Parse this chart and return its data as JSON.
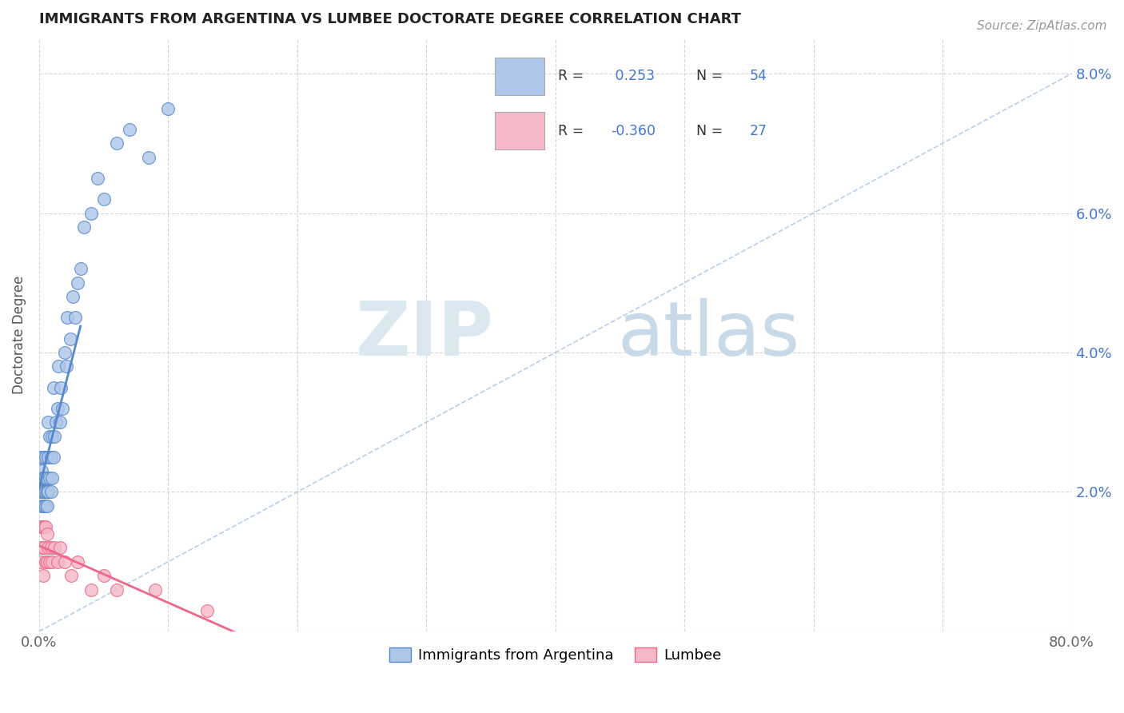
{
  "title": "IMMIGRANTS FROM ARGENTINA VS LUMBEE DOCTORATE DEGREE CORRELATION CHART",
  "source": "Source: ZipAtlas.com",
  "ylabel": "Doctorate Degree",
  "xlim": [
    0.0,
    0.8
  ],
  "ylim": [
    0.0,
    0.085
  ],
  "xtick_positions": [
    0.0,
    0.1,
    0.2,
    0.3,
    0.4,
    0.5,
    0.6,
    0.7,
    0.8
  ],
  "xticklabels": [
    "0.0%",
    "",
    "",
    "",
    "",
    "",
    "",
    "",
    "80.0%"
  ],
  "ytick_positions": [
    0.0,
    0.02,
    0.04,
    0.06,
    0.08
  ],
  "yticklabels_right": [
    "",
    "2.0%",
    "4.0%",
    "6.0%",
    "8.0%"
  ],
  "r1": 0.253,
  "n1": 54,
  "r2": -0.36,
  "n2": 27,
  "blue_fill": "#aec6e8",
  "pink_fill": "#f5b8c8",
  "blue_edge": "#5588cc",
  "pink_edge": "#ee6688",
  "text_blue": "#4477cc",
  "text_dark": "#333333",
  "grid_color": "#cccccc",
  "watermark_zip_color": "#dce8f0",
  "watermark_atlas_color": "#c8dae8",
  "blue_x": [
    0.001,
    0.001,
    0.001,
    0.002,
    0.002,
    0.002,
    0.003,
    0.003,
    0.003,
    0.003,
    0.004,
    0.004,
    0.004,
    0.005,
    0.005,
    0.005,
    0.005,
    0.006,
    0.006,
    0.006,
    0.007,
    0.007,
    0.007,
    0.008,
    0.008,
    0.009,
    0.009,
    0.01,
    0.01,
    0.011,
    0.011,
    0.012,
    0.013,
    0.014,
    0.015,
    0.016,
    0.017,
    0.018,
    0.02,
    0.021,
    0.022,
    0.024,
    0.026,
    0.028,
    0.03,
    0.032,
    0.035,
    0.04,
    0.045,
    0.05,
    0.06,
    0.07,
    0.085,
    0.1
  ],
  "blue_y": [
    0.02,
    0.025,
    0.022,
    0.018,
    0.023,
    0.015,
    0.02,
    0.025,
    0.018,
    0.022,
    0.02,
    0.022,
    0.018,
    0.02,
    0.022,
    0.025,
    0.018,
    0.02,
    0.022,
    0.018,
    0.025,
    0.02,
    0.03,
    0.022,
    0.028,
    0.02,
    0.025,
    0.022,
    0.028,
    0.025,
    0.035,
    0.028,
    0.03,
    0.032,
    0.038,
    0.03,
    0.035,
    0.032,
    0.04,
    0.038,
    0.045,
    0.042,
    0.048,
    0.045,
    0.05,
    0.052,
    0.058,
    0.06,
    0.065,
    0.062,
    0.07,
    0.072,
    0.068,
    0.075
  ],
  "pink_x": [
    0.001,
    0.001,
    0.002,
    0.002,
    0.003,
    0.003,
    0.004,
    0.004,
    0.005,
    0.005,
    0.006,
    0.006,
    0.007,
    0.008,
    0.009,
    0.01,
    0.012,
    0.014,
    0.016,
    0.02,
    0.025,
    0.03,
    0.04,
    0.05,
    0.06,
    0.09,
    0.13
  ],
  "pink_y": [
    0.015,
    0.01,
    0.015,
    0.012,
    0.015,
    0.008,
    0.012,
    0.015,
    0.01,
    0.015,
    0.01,
    0.014,
    0.012,
    0.01,
    0.012,
    0.01,
    0.012,
    0.01,
    0.012,
    0.01,
    0.008,
    0.01,
    0.006,
    0.008,
    0.006,
    0.006,
    0.003
  ],
  "blue_line_x0": 0.0,
  "blue_line_y0": 0.018,
  "blue_line_x1": 0.03,
  "blue_line_y1": 0.04,
  "pink_line_x0": 0.0,
  "pink_line_y0": 0.015,
  "pink_line_x1": 0.8,
  "pink_line_y1": 0.002
}
